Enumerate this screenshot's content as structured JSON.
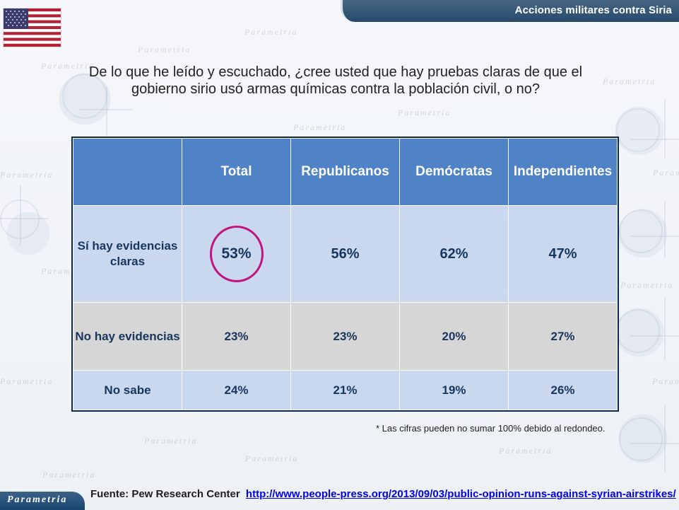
{
  "header": {
    "banner_title": "Acciones militares contra Siria"
  },
  "question": {
    "text": "De lo que he leído y escuchado, ¿cree  usted que hay pruebas claras de que el gobierno sirio usó armas químicas contra la población civil, o no?"
  },
  "table": {
    "columns": [
      "",
      "Total",
      "Republicanos",
      "Demócratas",
      "Independientes"
    ],
    "rows": [
      {
        "label": "Sí hay evidencias claras",
        "values": [
          "53%",
          "56%",
          "62%",
          "47%"
        ]
      },
      {
        "label": "No hay evidencias",
        "values": [
          "23%",
          "23%",
          "20%",
          "27%"
        ]
      },
      {
        "label": "No sabe",
        "values": [
          "24%",
          "21%",
          "19%",
          "26%"
        ]
      }
    ]
  },
  "note": {
    "text": "* Las cifras pueden no sumar 100% debido al redondeo."
  },
  "source": {
    "label": "Fuente: Pew Research Center",
    "link": "http://www.people-press.org/2013/09/03/public-opinion-runs-against-syrian-airstrikes/"
  },
  "brand": {
    "name": "Parametria",
    "watermark": "Parametria"
  },
  "colors": {
    "banner_blue": "#264a6c",
    "table_header_blue": "#4f83c5",
    "light_blue": "#c9d8ee",
    "gray": "#d6d6d6",
    "highlight_magenta": "#c1157c",
    "link_blue": "#0000ee"
  },
  "icons": {
    "flag": "us-flag-icon"
  }
}
